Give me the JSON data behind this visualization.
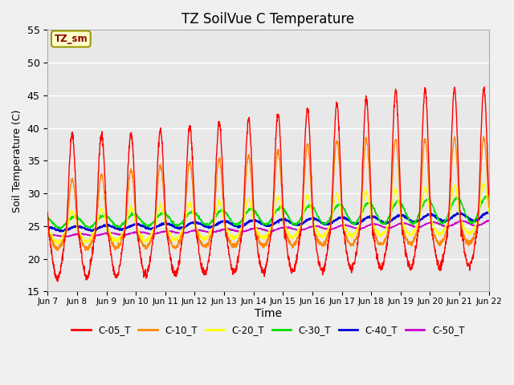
{
  "title": "TZ SoilVue C Temperature",
  "xlabel": "Time",
  "ylabel": "Soil Temperature (C)",
  "ylim": [
    15,
    55
  ],
  "yticks": [
    15,
    20,
    25,
    30,
    35,
    40,
    45,
    50,
    55
  ],
  "plot_bg_color": "#e8e8e8",
  "fig_bg_color": "#f0f0f0",
  "legend_label": "TZ_sm",
  "series_colors": {
    "C-05_T": "#ff0000",
    "C-10_T": "#ff8800",
    "C-20_T": "#ffff00",
    "C-30_T": "#00dd00",
    "C-40_T": "#0000dd",
    "C-50_T": "#cc00cc"
  },
  "x_tick_labels": [
    "Jun 7",
    "Jun 8",
    "Jun 9",
    "Jun 10",
    "Jun 11",
    "Jun 12",
    "Jun 13",
    "Jun 14",
    "Jun 15",
    "Jun 16",
    "Jun 17",
    "Jun 18",
    "Jun 19",
    "Jun 20",
    "Jun 21",
    "Jun 22"
  ],
  "num_days": 15,
  "samples_per_day": 144,
  "seed": 42
}
